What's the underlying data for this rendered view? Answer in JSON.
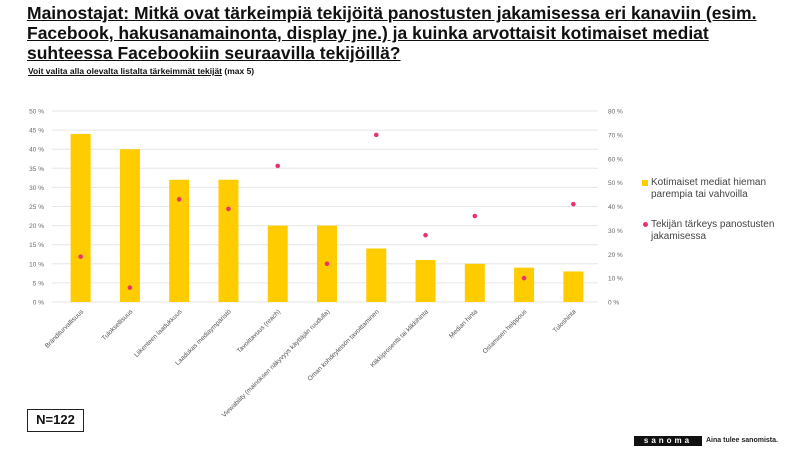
{
  "title": {
    "prefix": "Mainostajat: ",
    "main": "Mitkä ovat tärkeimpiä tekijöitä panostusten jakamisessa eri kanaviin (esim. Facebook, hakusanamainonta, display jne.) ja kuinka arvottaisit kotimaiset mediat suhteessa Facebookiin seuraavilla tekijöillä?"
  },
  "subtitle": {
    "main": "Voit valita alla olevalta listalta tärkeimmät tekijät",
    "suffix": " (max 5)"
  },
  "sample": "N=122",
  "brand": {
    "logo": "sanoma",
    "slogan": "Aina tulee sanomista."
  },
  "colors": {
    "bar": "#ffcc00",
    "dot": "#e8336d",
    "grid": "#e6e6e6",
    "axis_text": "#666666"
  },
  "chart_data": {
    "type": "bar",
    "categories": [
      "Bränditurvallisuus",
      "Tuloksellisuus",
      "Liikenteen laadukkuus",
      "Laadukas mediaympäristö",
      "Tavoittavuus (reach)",
      "Viewability (mainoksen näkyvyys käyttäjän ruudulla)",
      "Oman kohdeyleisön tavoittaminen",
      "Klikkiprosentti tai klikkihinta",
      "Median hinta",
      "Ostamisen helppous",
      "Tuloshinta"
    ],
    "series": [
      {
        "name": "Kotimaiset mediat hieman parempia tai vahvoilla",
        "kind": "bar",
        "axis": "left",
        "values": [
          44,
          40,
          32,
          32,
          20,
          20,
          14,
          11,
          10,
          9,
          8
        ]
      },
      {
        "name": "Tekijän tärkeys panostusten jakamisessa",
        "kind": "scatter",
        "axis": "right",
        "values": [
          19,
          6,
          43,
          39,
          57,
          16,
          70,
          28,
          36,
          10,
          41
        ]
      }
    ],
    "left_axis": {
      "min": 0,
      "max": 50,
      "step": 5,
      "ticks": [
        "0 %",
        "5 %",
        "10 %",
        "15 %",
        "20 %",
        "25 %",
        "30 %",
        "35 %",
        "40 %",
        "45 %",
        "50 %"
      ]
    },
    "right_axis": {
      "min": 0,
      "max": 80,
      "step": 10,
      "ticks": [
        "0 %",
        "10 %",
        "20 %",
        "30 %",
        "40 %",
        "50 %",
        "60 %",
        "70 %",
        "80 %"
      ]
    },
    "grid": true,
    "legend_position": "right"
  }
}
